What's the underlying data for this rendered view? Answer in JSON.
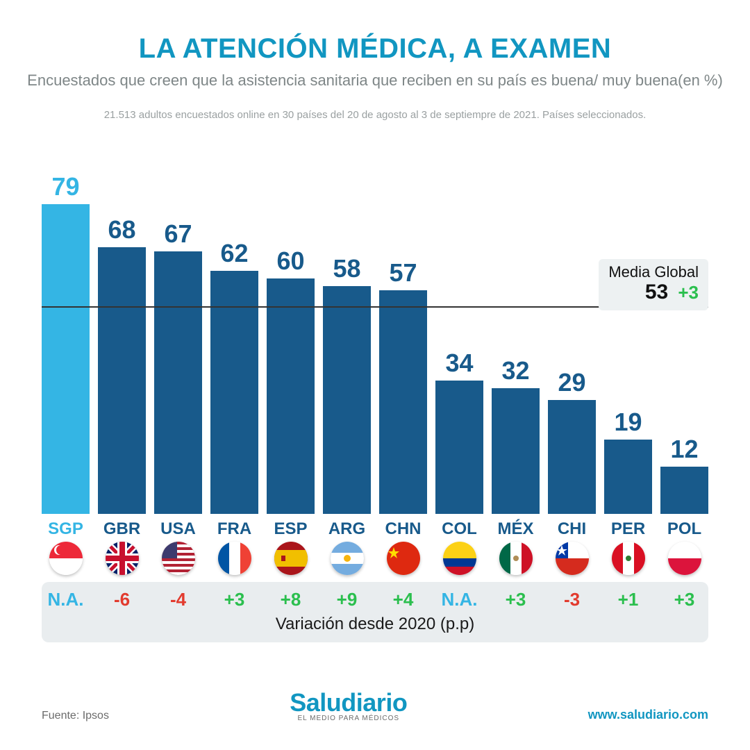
{
  "colors": {
    "title": "#1196c1",
    "subtitle": "#7e8687",
    "methodology": "#9aa0a1",
    "bar_default": "#185a8b",
    "bar_highlight": "#34b5e4",
    "value_default": "#185a8b",
    "value_highlight": "#34b5e4",
    "code_default": "#185a8b",
    "code_highlight": "#34b5e4",
    "avg_line": "#333333",
    "avg_text": "#111111",
    "positive": "#2bbf4e",
    "negative": "#e23b2e",
    "na": "#34b5e4",
    "url": "#1196c1",
    "band_bg": "#e9edef"
  },
  "header": {
    "title": "LA ATENCIÓN MÉDICA, A EXAMEN",
    "subtitle": "Encuestados que creen que la asistencia sanitaria que reciben en su país es buena/ muy buena(en %)",
    "methodology": "21.513 adultos encuestados online en 30 países del 20 de agosto al 3 de septiempre de 2021. Países seleccionados."
  },
  "chart": {
    "type": "bar",
    "y_max": 85,
    "global_average": {
      "label": "Media Global",
      "value": 53,
      "delta": "+3"
    },
    "bars": [
      {
        "code": "SGP",
        "value": 79,
        "variation": "N.A.",
        "var_type": "na",
        "highlight": true,
        "flag": "sgp"
      },
      {
        "code": "GBR",
        "value": 68,
        "variation": "-6",
        "var_type": "neg",
        "highlight": false,
        "flag": "gbr"
      },
      {
        "code": "USA",
        "value": 67,
        "variation": "-4",
        "var_type": "neg",
        "highlight": false,
        "flag": "usa"
      },
      {
        "code": "FRA",
        "value": 62,
        "variation": "+3",
        "var_type": "pos",
        "highlight": false,
        "flag": "fra"
      },
      {
        "code": "ESP",
        "value": 60,
        "variation": "+8",
        "var_type": "pos",
        "highlight": false,
        "flag": "esp"
      },
      {
        "code": "ARG",
        "value": 58,
        "variation": "+9",
        "var_type": "pos",
        "highlight": false,
        "flag": "arg"
      },
      {
        "code": "CHN",
        "value": 57,
        "variation": "+4",
        "var_type": "pos",
        "highlight": false,
        "flag": "chn"
      },
      {
        "code": "COL",
        "value": 34,
        "variation": "N.A.",
        "var_type": "na",
        "highlight": false,
        "flag": "col"
      },
      {
        "code": "MÉX",
        "value": 32,
        "variation": "+3",
        "var_type": "pos",
        "highlight": false,
        "flag": "mex"
      },
      {
        "code": "CHI",
        "value": 29,
        "variation": "-3",
        "var_type": "neg",
        "highlight": false,
        "flag": "chi"
      },
      {
        "code": "PER",
        "value": 19,
        "variation": "+1",
        "var_type": "pos",
        "highlight": false,
        "flag": "per"
      },
      {
        "code": "POL",
        "value": 12,
        "variation": "+3",
        "var_type": "pos",
        "highlight": false,
        "flag": "pol"
      }
    ],
    "variation_caption": "Variación desde 2020 (p.p)"
  },
  "footer": {
    "source": "Fuente: Ipsos",
    "brand": "Saludiario",
    "brand_tag": "EL MEDIO PARA MÉDICOS",
    "url": "www.saludiario.com"
  }
}
